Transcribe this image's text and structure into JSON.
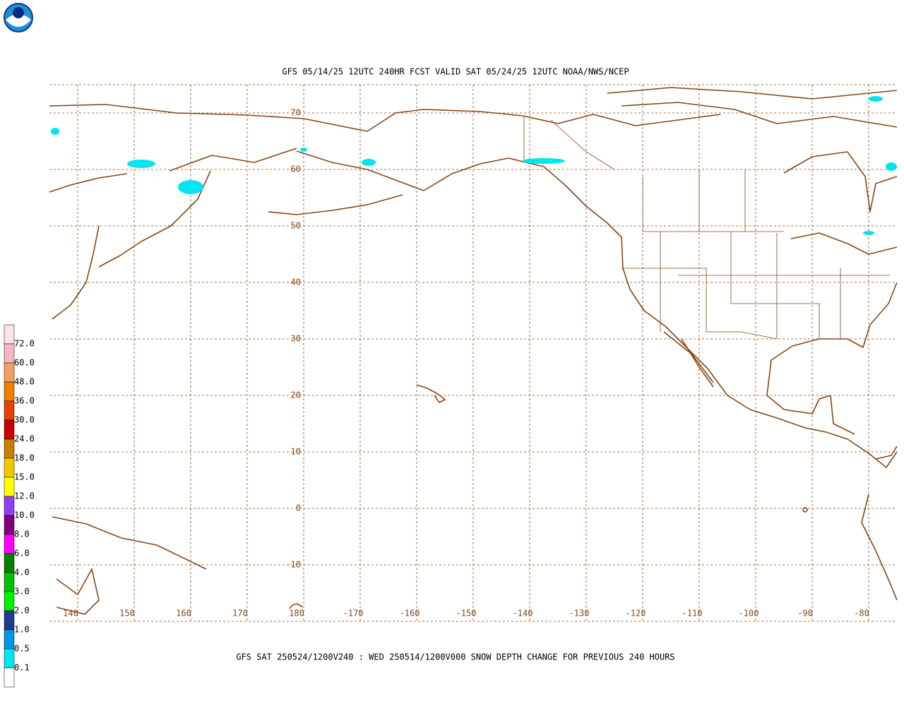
{
  "header": {
    "title": "GFS 05/14/25 12UTC 240HR FCST VALID SAT 05/24/25 12UTC NOAA/NWS/NCEP"
  },
  "map": {
    "lat_labels": [
      "70",
      "60",
      "50",
      "40",
      "30",
      "20",
      "10",
      "0",
      "-10"
    ],
    "lon_labels": [
      "140",
      "150",
      "160",
      "170",
      "180",
      "-170",
      "-160",
      "-150",
      "-140",
      "-130",
      "-120",
      "-110",
      "-100",
      "-90",
      "-80"
    ]
  },
  "legend": {
    "labels": [
      "72.0",
      "60.0",
      "48.0",
      "36.0",
      "30.0",
      "24.0",
      "18.0",
      "15.0",
      "12.0",
      "10.0",
      "8.0",
      "6.0",
      "4.0",
      "3.0",
      "2.0",
      "1.0",
      "0.5",
      "0.1"
    ],
    "colors": [
      "#fce4e4",
      "#f4b8c0",
      "#f0a060",
      "#f08000",
      "#e84000",
      "#c80000",
      "#c88000",
      "#f0c800",
      "#ffff00",
      "#9040f0",
      "#800080",
      "#ff00ff",
      "#008000",
      "#00c000",
      "#00f000",
      "#1e3c8c",
      "#0096e6",
      "#00e6f0",
      "#ffffff"
    ]
  },
  "footer": {
    "text": "GFS SAT 250524/1200V240 : WED 250514/1200V000 SNOW DEPTH CHANGE FOR PREVIOUS 240 HOURS"
  }
}
